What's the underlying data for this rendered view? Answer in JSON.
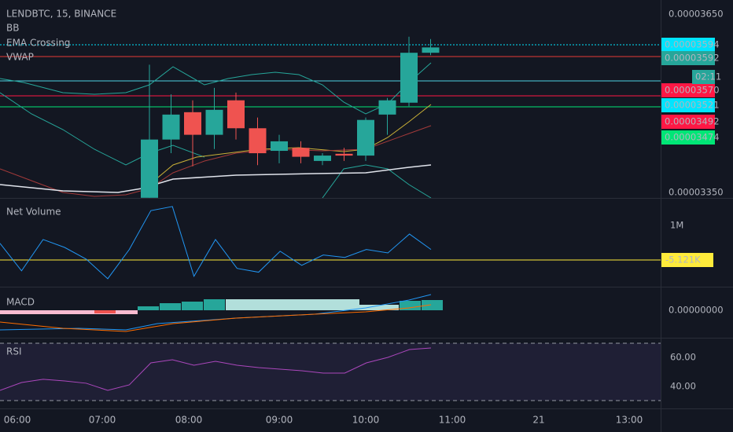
{
  "header": {
    "symbol": "LENDBTC, 15, BINANCE",
    "indicators": [
      "BB",
      "EMA Crossing",
      "VWAP"
    ]
  },
  "price_axis": {
    "ticks": [
      {
        "value": 3.65e-05,
        "label": "0.00003650"
      },
      {
        "value": 3.35e-05,
        "label": "0.00003350"
      }
    ]
  },
  "price_tags": [
    "0.00003594",
    "0.00003592",
    "0.00003570",
    "0.00003521",
    "0.00003492",
    "0.00003474"
  ],
  "countdown": "02:11",
  "candles": {
    "open": [
      3.341e-05,
      3.439e-05,
      3.485e-05,
      3.447e-05,
      3.505e-05,
      3.458e-05,
      3.42e-05,
      3.425e-05,
      3.403e-05,
      3.415e-05,
      3.412e-05,
      3.481e-05,
      3.501e-05,
      3.585e-05
    ],
    "close": [
      3.439e-05,
      3.481e-05,
      3.447e-05,
      3.489e-05,
      3.458e-05,
      3.416e-05,
      3.436e-05,
      3.41e-05,
      3.412e-05,
      3.412e-05,
      3.472e-05,
      3.505e-05,
      3.585e-05,
      3.594e-05
    ],
    "high": [
      3.565e-05,
      3.515e-05,
      3.505e-05,
      3.526e-05,
      3.518e-05,
      3.476e-05,
      3.447e-05,
      3.436e-05,
      3.416e-05,
      3.425e-05,
      3.476e-05,
      3.509e-05,
      3.612e-05,
      3.608e-05
    ],
    "low": [
      3.341e-05,
      3.416e-05,
      3.394e-05,
      3.423e-05,
      3.439e-05,
      3.396e-05,
      3.399e-05,
      3.399e-05,
      3.396e-05,
      3.403e-05,
      3.403e-05,
      3.447e-05,
      3.495e-05,
      3.581e-05
    ]
  },
  "time_axis": [
    "06:00",
    "07:00",
    "08:00",
    "09:00",
    "10:00",
    "11:00",
    "21",
    "13:00"
  ],
  "net_volume": {
    "title": "Net Volume",
    "tick": {
      "value": 1000000,
      "label": "1M"
    },
    "last": {
      "value": -5121,
      "label": "-5.121K"
    },
    "values": [
      480000,
      -320000,
      590000,
      360000,
      20000,
      -550000,
      300000,
      1430000,
      1550000,
      -480000,
      590000,
      -250000,
      -360000,
      250000,
      -160000,
      140000,
      70000,
      300000,
      200000,
      750000,
      300000
    ]
  },
  "macd": {
    "title": "MACD",
    "zero": "0.00000000"
  },
  "rsi": {
    "title": "RSI",
    "ticks": [
      {
        "value": 60,
        "label": "60.00"
      },
      {
        "value": 40,
        "label": "40.00"
      }
    ],
    "values": [
      37.3,
      42.7,
      44.9,
      43.8,
      42.2,
      37.3,
      41.1,
      56.2,
      58.4,
      54.6,
      57.3,
      54.6,
      53.0,
      51.9,
      50.8,
      49.2,
      49.2,
      56.2,
      60,
      65.4,
      66.5
    ]
  }
}
